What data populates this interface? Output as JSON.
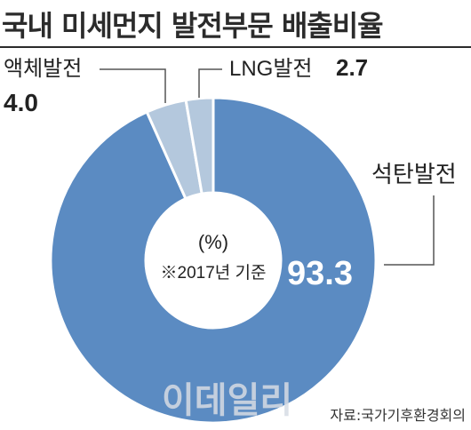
{
  "title": "국내 미세먼지 발전부문 배출비율",
  "chart_data": {
    "type": "pie",
    "donut": true,
    "unit_note": "(%)",
    "base_note": "※2017년 기준",
    "slices": [
      {
        "label": "석탄발전",
        "value": 93.3,
        "value_text": "93.3",
        "color": "#5b8bc2"
      },
      {
        "label": "액체발전",
        "value": 4.0,
        "value_text": "4.0",
        "color": "#b4c8dd"
      },
      {
        "label": "LNG발전",
        "value": 2.7,
        "value_text": "2.7",
        "color": "#b4c8dd"
      }
    ]
  },
  "source": "자료:국가기후환경회의",
  "watermark": "이데일리"
}
